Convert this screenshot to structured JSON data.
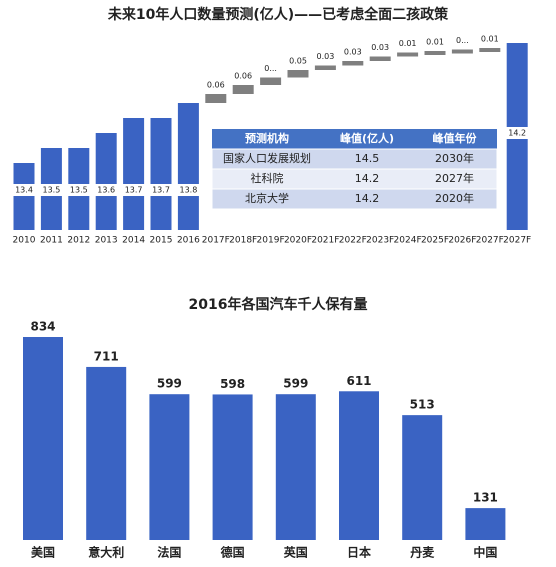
{
  "chart_data": [
    {
      "type": "waterfall",
      "title": "未来10年人口数量预测(亿人)——已考虑全面二孩政策",
      "categories": [
        "2010",
        "2011",
        "2012",
        "2013",
        "2014",
        "2015",
        "2016",
        "2017F",
        "2018F",
        "2019F",
        "2020F",
        "2021F",
        "2022F",
        "2023F",
        "2024F",
        "2025F",
        "2026F",
        "2027F",
        "2027F"
      ],
      "values": [
        13.4,
        13.5,
        13.5,
        13.6,
        13.7,
        13.7,
        13.8,
        0.06,
        0.06,
        0.05,
        0.05,
        0.03,
        0.03,
        0.03,
        0.01,
        0.01,
        0.01,
        0.01,
        14.2
      ],
      "value_labels": [
        "13.4",
        "13.5",
        "13.5",
        "13.6",
        "13.7",
        "13.7",
        "13.8",
        "0.06",
        "0.06",
        "0...",
        "0.05",
        "0.03",
        "0.03",
        "0.03",
        "0.01",
        "0.01",
        "0...",
        "0.01",
        "14.2"
      ],
      "measure": [
        "absolute",
        "absolute",
        "absolute",
        "absolute",
        "absolute",
        "absolute",
        "absolute",
        "relative",
        "relative",
        "relative",
        "relative",
        "relative",
        "relative",
        "relative",
        "relative",
        "relative",
        "relative",
        "relative",
        "total"
      ],
      "color": "#3a63c3",
      "increase_color": "#7f7f7f",
      "table": {
        "columns": [
          "预测机构",
          "峰值(亿人)",
          "峰值年份"
        ],
        "rows": [
          [
            "国家人口发展规划",
            "14.5",
            "2030年"
          ],
          [
            "社科院",
            "14.2",
            "2027年"
          ],
          [
            "北京大学",
            "14.2",
            "2020年"
          ]
        ]
      }
    },
    {
      "type": "bar",
      "title": "2016年各国汽车千人保有量",
      "categories": [
        "美国",
        "意大利",
        "法国",
        "德国",
        "英国",
        "日本",
        "丹麦",
        "中国"
      ],
      "values": [
        834,
        711,
        599,
        598,
        599,
        611,
        513,
        131
      ],
      "color": "#3a63c3"
    }
  ]
}
